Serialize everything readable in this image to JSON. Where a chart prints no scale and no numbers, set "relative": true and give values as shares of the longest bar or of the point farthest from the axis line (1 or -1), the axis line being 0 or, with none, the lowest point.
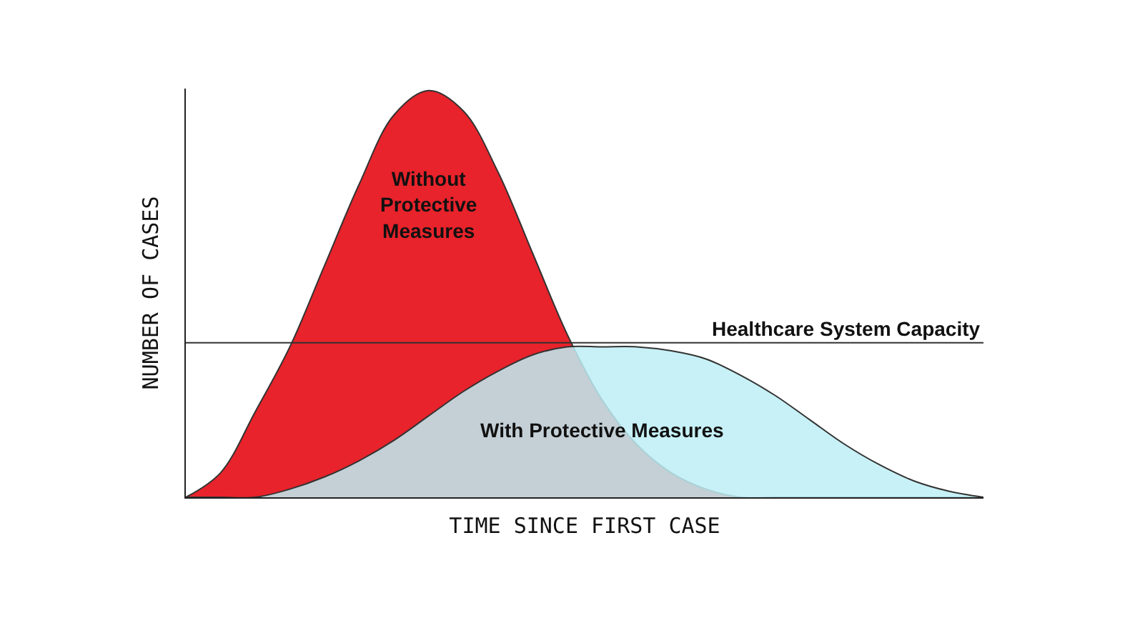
{
  "chart_data": {
    "type": "area",
    "relative": true,
    "xlabel": "TIME SINCE FIRST CASE",
    "ylabel": "NUMBER OF CASES",
    "tick_labels": false,
    "legend": false,
    "marker": "none",
    "line_style": "solid",
    "categories": [
      null,
      null,
      null,
      null,
      null,
      null,
      null,
      null,
      null,
      null,
      null,
      null,
      null,
      null,
      null,
      null,
      null,
      null,
      null,
      null,
      null,
      null,
      null,
      null
    ],
    "series": [
      {
        "name": "Without Protective Measures",
        "color": "#e8232b",
        "values": [
          0,
          0.06,
          0.21,
          0.37,
          0.57,
          0.77,
          0.94,
          1.0,
          0.95,
          0.8,
          0.6,
          0.4,
          0.24,
          0.13,
          0.06,
          0.02,
          0,
          0,
          0,
          0,
          0,
          0,
          0,
          0
        ]
      },
      {
        "name": "With Protective Measures",
        "color": "#bdeef5",
        "values": [
          0,
          0,
          0,
          0.02,
          0.05,
          0.09,
          0.14,
          0.2,
          0.26,
          0.31,
          0.35,
          0.37,
          0.37,
          0.37,
          0.36,
          0.34,
          0.3,
          0.25,
          0.19,
          0.13,
          0.08,
          0.04,
          0.015,
          0
        ]
      }
    ],
    "ref_lines": [
      {
        "axis": "y",
        "value": 0.38,
        "label": "Healthcare System Capacity",
        "color": "#333333",
        "line_style": "solid"
      }
    ]
  }
}
